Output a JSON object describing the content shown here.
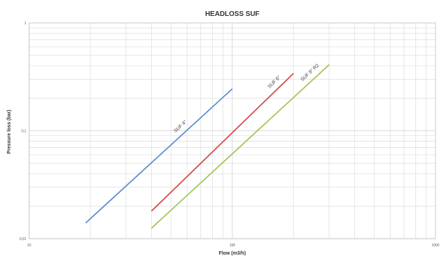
{
  "chart_data": {
    "type": "line",
    "title": "HEADLOSS SUF",
    "xlabel": "Flow (m3/h)",
    "ylabel": "Pressure loss (bar)",
    "x_scale": "log",
    "y_scale": "log",
    "xlim": [
      10,
      1000
    ],
    "ylim": [
      0.01,
      1
    ],
    "x_ticks": [
      "10",
      "100",
      "1000"
    ],
    "y_ticks": [
      "0,01",
      "0,1",
      "1"
    ],
    "grid": true,
    "legend": "none",
    "series": [
      {
        "name": "SUF 4\"",
        "color": "#5b8fd0",
        "x": [
          19,
          100
        ],
        "y": [
          0.014,
          0.245
        ]
      },
      {
        "name": "SUF 6\"",
        "color": "#d24d4a",
        "x": [
          40,
          200
        ],
        "y": [
          0.018,
          0.34
        ]
      },
      {
        "name": "SUF 8\" R2",
        "color": "#a3c65a",
        "x": [
          40,
          300
        ],
        "y": [
          0.0125,
          0.41
        ]
      }
    ]
  }
}
